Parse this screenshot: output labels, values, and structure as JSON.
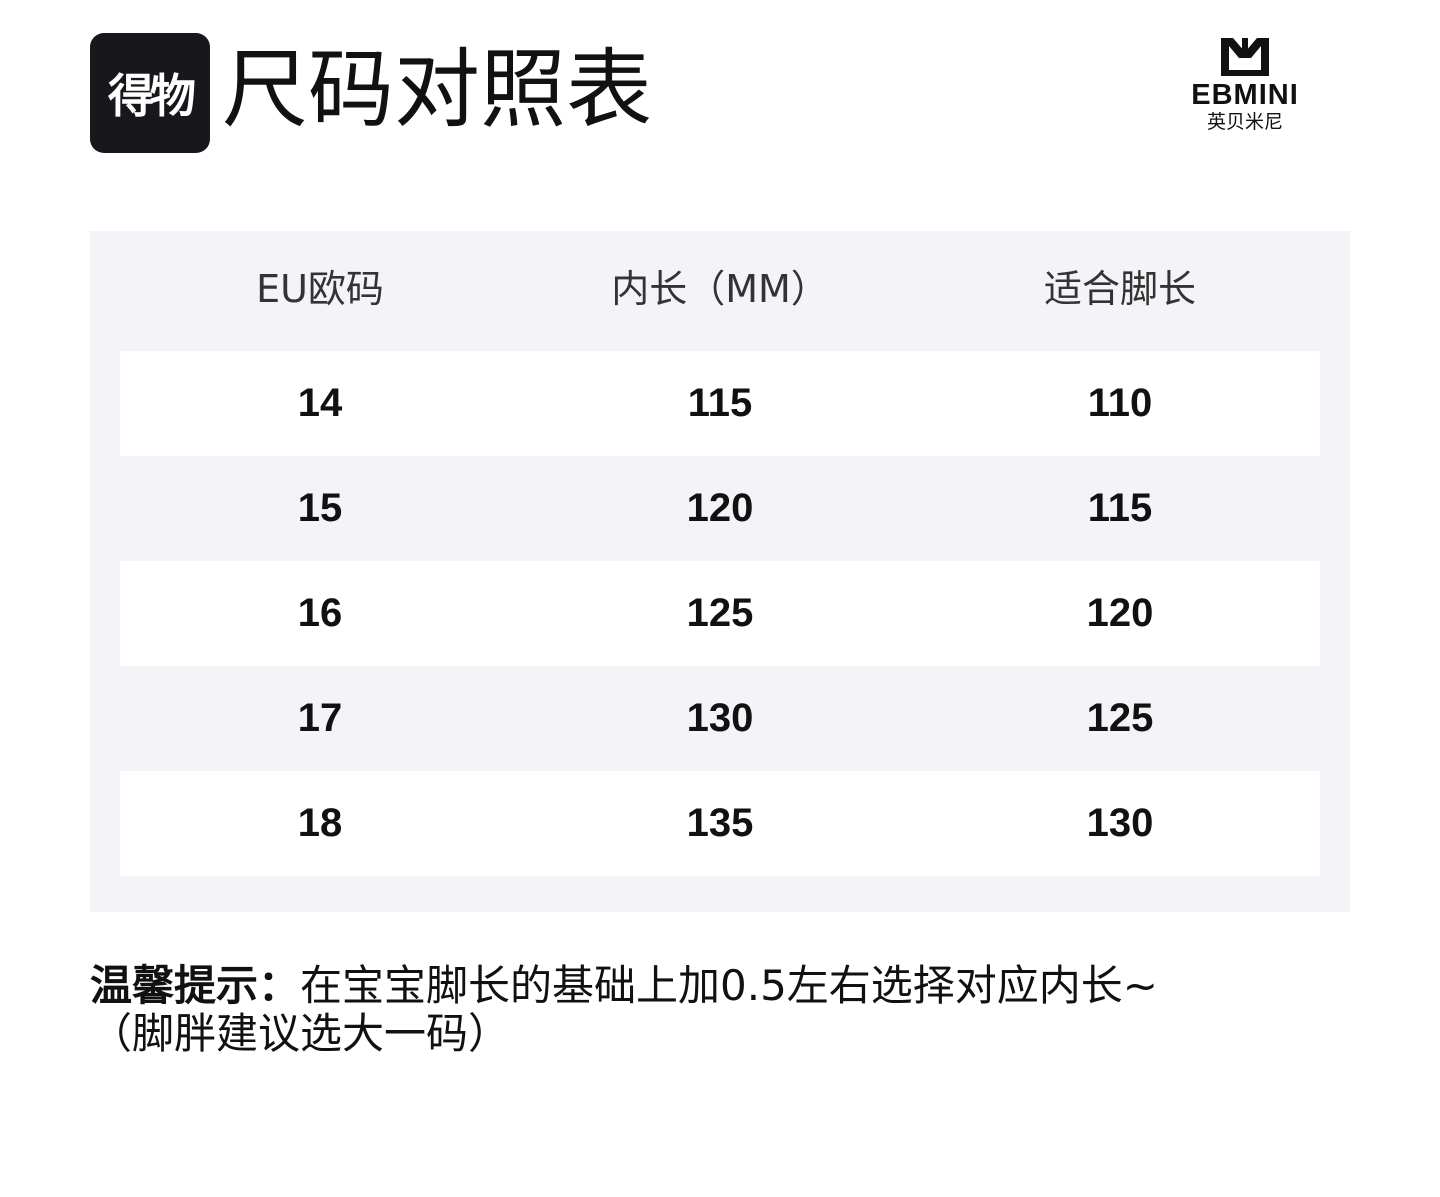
{
  "header": {
    "logo_text": "得物",
    "title": "尺码对照表",
    "brand_en": "EBMINI",
    "brand_cn": "英贝米尼"
  },
  "table": {
    "columns": [
      "EU欧码",
      "内长（MM）",
      "适合脚长"
    ],
    "rows": [
      [
        "14",
        "115",
        "110"
      ],
      [
        "15",
        "120",
        "115"
      ],
      [
        "16",
        "125",
        "120"
      ],
      [
        "17",
        "130",
        "125"
      ],
      [
        "18",
        "135",
        "130"
      ]
    ]
  },
  "tip": {
    "label": "温馨提示：",
    "line1": "在宝宝脚长的基础上加0.5左右选择对应内长~",
    "line2": "（脚胖建议选大一码）"
  },
  "colors": {
    "panel": "#f4f4f8",
    "logo_bg": "#17171c"
  }
}
